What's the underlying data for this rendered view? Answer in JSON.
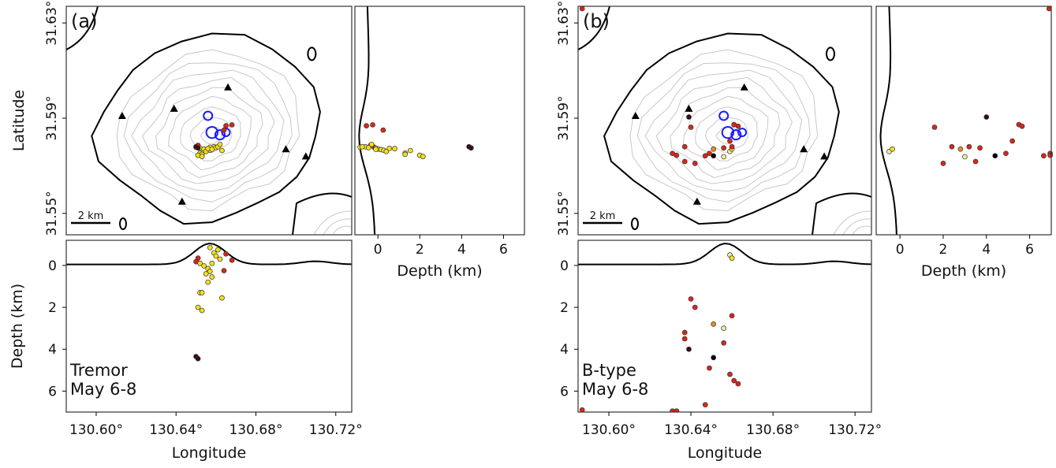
{
  "figure": {
    "colors": {
      "frame": "#333333",
      "coast": "#000000",
      "contour": "#c8c8c8",
      "vent_circle": "#1a1aff",
      "station": "#000000",
      "point_colors": {
        "yellow": "#f4e01c",
        "red": "#d9261c",
        "orange": "#f08a1e",
        "dark": "#3a0d0d",
        "black": "#000000",
        "pale": "#f0eaa0"
      }
    },
    "symbols": {
      "station_icon": "triangle-icon",
      "vent_icon": "circle-icon"
    }
  },
  "chart_data": [
    {
      "id": "a",
      "type": "scatter",
      "panel_label": "(a)",
      "annotation": [
        "Tremor",
        "May 6-8"
      ],
      "map": {
        "xlim": [
          130.585,
          130.728
        ],
        "ylim": [
          31.541,
          31.637
        ],
        "ylabel": "Latitude",
        "yticks": [
          31.55,
          31.59,
          31.63
        ],
        "ytick_labels": [
          "31.55°",
          "31.59°",
          "31.63°"
        ]
      },
      "depth_side": {
        "xlim": [
          -1.1,
          7.0
        ],
        "xticks": [
          0,
          2,
          4,
          6
        ],
        "xtick_labels": [
          "0",
          "2",
          "4",
          "6"
        ],
        "xlabel": "Depth (km)"
      },
      "depth_bottom": {
        "ylim": [
          -1.2,
          7.0
        ],
        "yticks": [
          0,
          2,
          4,
          6
        ],
        "ytick_labels": [
          "0",
          "2",
          "4",
          "6"
        ],
        "ylabel": "Depth (km)",
        "xticks": [
          130.6,
          130.64,
          130.68,
          130.72
        ],
        "xtick_labels": [
          "130.60°",
          "130.64°",
          "130.68°",
          "130.72°"
        ],
        "xlabel": "Longitude"
      },
      "scale_bar": {
        "label": "2 km",
        "km": 2
      },
      "stations": [
        [
          130.666,
          31.603
        ],
        [
          130.639,
          31.594
        ],
        [
          130.613,
          31.591
        ],
        [
          130.695,
          31.577
        ],
        [
          130.705,
          31.574
        ],
        [
          130.643,
          31.555
        ]
      ],
      "vents": [
        [
          130.656,
          31.591,
          1.0
        ],
        [
          130.658,
          31.584,
          1.3
        ],
        [
          130.662,
          31.583,
          1.1
        ],
        [
          130.665,
          31.584,
          0.9
        ]
      ],
      "events": [
        {
          "lon": 130.651,
          "lat": 31.5786,
          "depth": -0.35,
          "color": "red"
        },
        {
          "lon": 130.65,
          "lat": 31.5778,
          "depth": -0.18,
          "color": "red"
        },
        {
          "lon": 130.652,
          "lat": 31.5774,
          "depth": -0.1,
          "color": "yellow"
        },
        {
          "lon": 130.654,
          "lat": 31.577,
          "depth": 0.02,
          "color": "yellow"
        },
        {
          "lon": 130.656,
          "lat": 31.5768,
          "depth": 0.15,
          "color": "yellow"
        },
        {
          "lon": 130.657,
          "lat": 31.5765,
          "depth": 0.28,
          "color": "yellow"
        },
        {
          "lon": 130.655,
          "lat": 31.576,
          "depth": 0.4,
          "color": "yellow"
        },
        {
          "lon": 130.658,
          "lat": 31.5773,
          "depth": 0.55,
          "color": "yellow"
        },
        {
          "lon": 130.659,
          "lat": 31.578,
          "depth": -0.6,
          "color": "yellow"
        },
        {
          "lon": 130.66,
          "lat": 31.5776,
          "depth": -0.45,
          "color": "yellow"
        },
        {
          "lon": 130.657,
          "lat": 31.5778,
          "depth": -0.85,
          "color": "yellow"
        },
        {
          "lon": 130.652,
          "lat": 31.5753,
          "depth": 1.3,
          "color": "yellow"
        },
        {
          "lon": 130.653,
          "lat": 31.5748,
          "depth": 1.3,
          "color": "yellow"
        },
        {
          "lon": 130.651,
          "lat": 31.5744,
          "depth": 2.0,
          "color": "yellow"
        },
        {
          "lon": 130.653,
          "lat": 31.5739,
          "depth": 2.15,
          "color": "yellow"
        },
        {
          "lon": 130.656,
          "lat": 31.5772,
          "depth": 0.8,
          "color": "yellow"
        },
        {
          "lon": 130.658,
          "lat": 31.5769,
          "depth": -0.1,
          "color": "yellow"
        },
        {
          "lon": 130.661,
          "lat": 31.578,
          "depth": -0.75,
          "color": "yellow"
        },
        {
          "lon": 130.663,
          "lat": 31.5764,
          "depth": 1.55,
          "color": "yellow"
        },
        {
          "lon": 130.665,
          "lat": 31.5868,
          "depth": -0.55,
          "color": "red"
        },
        {
          "lon": 130.668,
          "lat": 31.5872,
          "depth": -0.25,
          "color": "red"
        },
        {
          "lon": 130.664,
          "lat": 31.585,
          "depth": 0.25,
          "color": "red"
        },
        {
          "lon": 130.65,
          "lat": 31.578,
          "depth": 4.35,
          "color": "dark"
        },
        {
          "lon": 130.651,
          "lat": 31.5775,
          "depth": 4.45,
          "color": "dark"
        },
        {
          "lon": 130.662,
          "lat": 31.579,
          "depth": -0.3,
          "color": "yellow"
        }
      ]
    },
    {
      "id": "b",
      "type": "scatter",
      "panel_label": "(b)",
      "annotation": [
        "B-type",
        "May 6-8"
      ],
      "map": {
        "xlim": [
          130.585,
          130.728
        ],
        "ylim": [
          31.541,
          31.637
        ],
        "yticks": [
          31.55,
          31.59,
          31.63
        ],
        "ytick_labels": [
          "31.55°",
          "31.59°",
          "31.63°"
        ]
      },
      "depth_side": {
        "xlim": [
          -1.1,
          7.0
        ],
        "xticks": [
          0,
          2,
          4,
          6
        ],
        "xtick_labels": [
          "0",
          "2",
          "4",
          "6"
        ],
        "xlabel": "Depth (km)"
      },
      "depth_bottom": {
        "ylim": [
          -1.2,
          7.0
        ],
        "yticks": [
          0,
          2,
          4,
          6
        ],
        "ytick_labels": [
          "0",
          "2",
          "4",
          "6"
        ],
        "xticks": [
          130.6,
          130.64,
          130.68,
          130.72
        ],
        "xtick_labels": [
          "130.60°",
          "130.64°",
          "130.68°",
          "130.72°"
        ],
        "xlabel": "Longitude"
      },
      "scale_bar": {
        "label": "2 km",
        "km": 2
      },
      "stations": [
        [
          130.666,
          31.603
        ],
        [
          130.639,
          31.594
        ],
        [
          130.613,
          31.591
        ],
        [
          130.695,
          31.577
        ],
        [
          130.705,
          31.574
        ],
        [
          130.643,
          31.555
        ]
      ],
      "vents": [
        [
          130.656,
          31.591,
          1.0
        ],
        [
          130.658,
          31.584,
          1.3
        ],
        [
          130.662,
          31.583,
          1.1
        ],
        [
          130.665,
          31.584,
          0.9
        ]
      ],
      "events": [
        {
          "lon": 130.659,
          "lat": 31.576,
          "depth": -0.5,
          "color": "pale"
        },
        {
          "lon": 130.66,
          "lat": 31.577,
          "depth": -0.35,
          "color": "yellow"
        },
        {
          "lon": 130.64,
          "lat": 31.5862,
          "depth": 1.6,
          "color": "red"
        },
        {
          "lon": 130.66,
          "lat": 31.578,
          "depth": 2.4,
          "color": "red"
        },
        {
          "lon": 130.651,
          "lat": 31.577,
          "depth": 2.8,
          "color": "orange"
        },
        {
          "lon": 130.656,
          "lat": 31.5738,
          "depth": 3.0,
          "color": "pale"
        },
        {
          "lon": 130.637,
          "lat": 31.578,
          "depth": 3.2,
          "color": "red"
        },
        {
          "lon": 130.651,
          "lat": 31.5742,
          "depth": 4.4,
          "color": "black"
        },
        {
          "lon": 130.649,
          "lat": 31.5752,
          "depth": 4.9,
          "color": "red"
        },
        {
          "lon": 130.661,
          "lat": 31.5873,
          "depth": 5.5,
          "color": "red"
        },
        {
          "lon": 130.663,
          "lat": 31.5866,
          "depth": 5.65,
          "color": "red"
        },
        {
          "lon": 130.647,
          "lat": 31.5742,
          "depth": 6.65,
          "color": "red"
        },
        {
          "lon": 130.631,
          "lat": 31.5752,
          "depth": 6.95,
          "color": "red"
        },
        {
          "lon": 130.633,
          "lat": 31.5744,
          "depth": 6.95,
          "color": "red"
        },
        {
          "lon": 130.642,
          "lat": 31.571,
          "depth": 2.0,
          "color": "red"
        },
        {
          "lon": 130.637,
          "lat": 31.5718,
          "depth": 3.5,
          "color": "red"
        },
        {
          "lon": 130.659,
          "lat": 31.5804,
          "depth": 5.2,
          "color": "red"
        },
        {
          "lon": 130.656,
          "lat": 31.5775,
          "depth": 3.7,
          "color": "red"
        },
        {
          "lon": 130.639,
          "lat": 31.5905,
          "depth": 4.0,
          "color": "dark"
        },
        {
          "lon": 130.587,
          "lat": 31.636,
          "depth": 6.9,
          "color": "red"
        }
      ]
    }
  ]
}
